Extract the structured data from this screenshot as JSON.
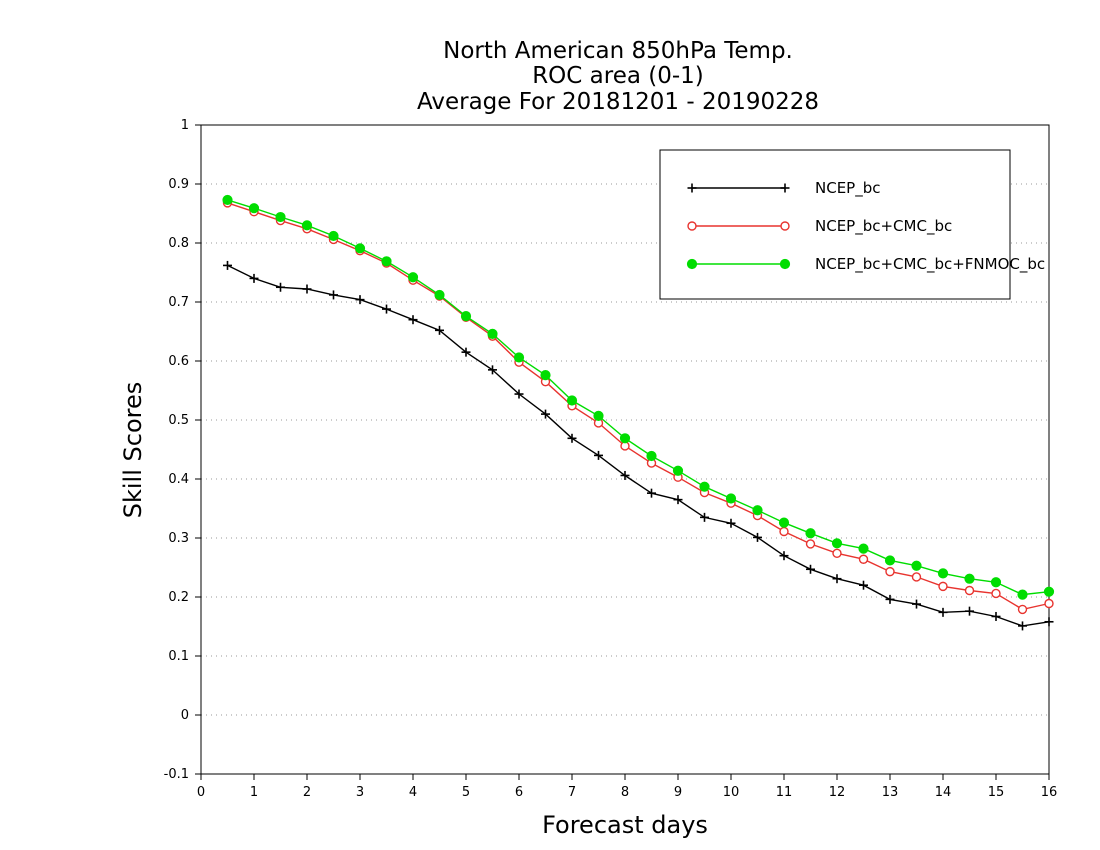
{
  "chart_data": {
    "type": "line",
    "title_lines": [
      "North American 850hPa Temp.",
      "ROC area (0-1)",
      "Average For 20181201 - 20190228"
    ],
    "xlabel": "Forecast days",
    "ylabel": "Skill Scores",
    "xlim": [
      0,
      16
    ],
    "ylim": [
      -0.1,
      1
    ],
    "x_ticks": [
      0,
      1,
      2,
      3,
      4,
      5,
      6,
      7,
      8,
      9,
      10,
      11,
      12,
      13,
      14,
      15,
      16
    ],
    "y_ticks": [
      -0.1,
      0,
      0.1,
      0.2,
      0.3,
      0.4,
      0.5,
      0.6,
      0.7,
      0.8,
      0.9,
      1
    ],
    "y_tick_labels": [
      "-0.1",
      "0",
      "0.1",
      "0.2",
      "0.3",
      "0.4",
      "0.5",
      "0.6",
      "0.7",
      "0.8",
      "0.9",
      "1"
    ],
    "grid": "horizontal-dotted",
    "legend_position": "top-right",
    "x": [
      0.5,
      1,
      1.5,
      2,
      2.5,
      3,
      3.5,
      4,
      4.5,
      5,
      5.5,
      6,
      6.5,
      7,
      7.5,
      8,
      8.5,
      9,
      9.5,
      10,
      10.5,
      11,
      11.5,
      12,
      12.5,
      13,
      13.5,
      14,
      14.5,
      15,
      15.5,
      16
    ],
    "series": [
      {
        "name": "NCEP_bc",
        "color": "#000000",
        "marker": "plus",
        "values": [
          0.762,
          0.74,
          0.725,
          0.722,
          0.712,
          0.704,
          0.688,
          0.67,
          0.652,
          0.615,
          0.585,
          0.544,
          0.51,
          0.469,
          0.44,
          0.406,
          0.376,
          0.365,
          0.335,
          0.325,
          0.301,
          0.27,
          0.247,
          0.231,
          0.22,
          0.196,
          0.188,
          0.174,
          0.176,
          0.167,
          0.151,
          0.158
        ]
      },
      {
        "name": "NCEP_bc+CMC_bc",
        "color": "#e8342f",
        "marker": "open-circle",
        "values": [
          0.868,
          0.853,
          0.838,
          0.824,
          0.806,
          0.787,
          0.766,
          0.737,
          0.71,
          0.674,
          0.642,
          0.598,
          0.565,
          0.524,
          0.495,
          0.456,
          0.427,
          0.403,
          0.377,
          0.359,
          0.338,
          0.311,
          0.29,
          0.274,
          0.264,
          0.243,
          0.234,
          0.218,
          0.211,
          0.206,
          0.179,
          0.189
        ]
      },
      {
        "name": "NCEP_bc+CMC_bc+FNMOC_bc",
        "color": "#00dd00",
        "marker": "filled-circle",
        "values": [
          0.873,
          0.859,
          0.844,
          0.83,
          0.812,
          0.791,
          0.769,
          0.742,
          0.712,
          0.676,
          0.646,
          0.606,
          0.576,
          0.533,
          0.507,
          0.469,
          0.439,
          0.414,
          0.387,
          0.367,
          0.347,
          0.326,
          0.308,
          0.291,
          0.282,
          0.262,
          0.253,
          0.24,
          0.231,
          0.225,
          0.204,
          0.209
        ]
      }
    ]
  }
}
